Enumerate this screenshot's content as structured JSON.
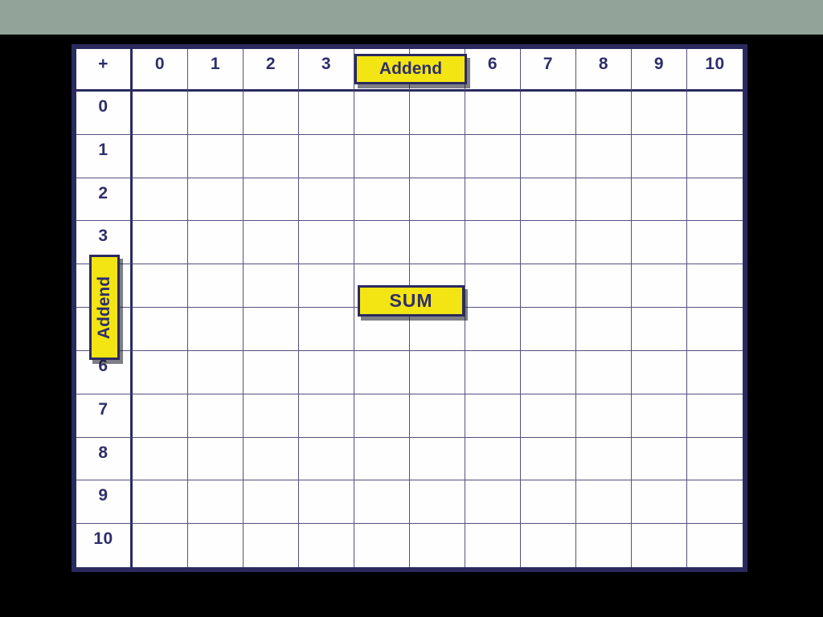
{
  "slide": {
    "background_color": "#000000",
    "top_bar_color": "#92A49A",
    "table_border_color": "#2B2A5F",
    "grid_line_color": "#55517E",
    "text_color": "#2F2E6B",
    "label_background_color": "#F3E514"
  },
  "table": {
    "operator": "+",
    "column_headers": [
      "0",
      "1",
      "2",
      "3",
      "",
      "",
      "6",
      "7",
      "8",
      "9",
      "10"
    ],
    "row_headers": [
      "0",
      "1",
      "2",
      "3",
      "",
      "",
      "6",
      "7",
      "8",
      "9",
      "10"
    ],
    "row_count": 11,
    "column_count": 11,
    "body_cell_value": ""
  },
  "labels": {
    "addend_top": "Addend",
    "addend_left": "Addend",
    "sum": "SUM"
  }
}
